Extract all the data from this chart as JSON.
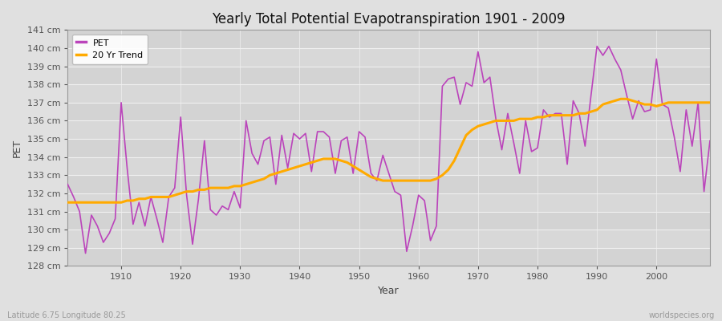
{
  "title": "Yearly Total Potential Evapotranspiration 1901 - 2009",
  "xlabel": "Year",
  "ylabel": "PET",
  "subtitle": "Latitude 6.75 Longitude 80.25",
  "watermark": "worldspecies.org",
  "pet_color": "#bb44bb",
  "trend_color": "#ffaa00",
  "background_color": "#e0e0e0",
  "plot_bg_color": "#d8d8d8",
  "grid_color": "#f0f0f0",
  "ylim": [
    128,
    141
  ],
  "xlim": [
    1901,
    2009
  ],
  "yticks": [
    128,
    129,
    130,
    131,
    132,
    133,
    134,
    135,
    136,
    137,
    138,
    139,
    140,
    141
  ],
  "xticks": [
    1910,
    1920,
    1930,
    1940,
    1950,
    1960,
    1970,
    1980,
    1990,
    2000
  ],
  "years": [
    1901,
    1902,
    1903,
    1904,
    1905,
    1906,
    1907,
    1908,
    1909,
    1910,
    1911,
    1912,
    1913,
    1914,
    1915,
    1916,
    1917,
    1918,
    1919,
    1920,
    1921,
    1922,
    1923,
    1924,
    1925,
    1926,
    1927,
    1928,
    1929,
    1930,
    1931,
    1932,
    1933,
    1934,
    1935,
    1936,
    1937,
    1938,
    1939,
    1940,
    1941,
    1942,
    1943,
    1944,
    1945,
    1946,
    1947,
    1948,
    1949,
    1950,
    1951,
    1952,
    1953,
    1954,
    1955,
    1956,
    1957,
    1958,
    1959,
    1960,
    1961,
    1962,
    1963,
    1964,
    1965,
    1966,
    1967,
    1968,
    1969,
    1970,
    1971,
    1972,
    1973,
    1974,
    1975,
    1976,
    1977,
    1978,
    1979,
    1980,
    1981,
    1982,
    1983,
    1984,
    1985,
    1986,
    1987,
    1988,
    1989,
    1990,
    1991,
    1992,
    1993,
    1994,
    1995,
    1996,
    1997,
    1998,
    1999,
    2000,
    2001,
    2002,
    2003,
    2004,
    2005,
    2006,
    2007,
    2008,
    2009
  ],
  "pet_values": [
    132.5,
    131.8,
    131.0,
    128.7,
    130.8,
    130.2,
    129.3,
    129.8,
    130.6,
    137.0,
    133.4,
    130.3,
    131.5,
    130.2,
    131.8,
    130.6,
    129.3,
    131.8,
    132.3,
    136.2,
    131.9,
    129.2,
    131.7,
    134.9,
    131.1,
    130.8,
    131.3,
    131.1,
    132.1,
    131.2,
    136.0,
    134.2,
    133.6,
    134.9,
    135.1,
    132.5,
    135.2,
    133.4,
    135.3,
    135.0,
    135.3,
    133.2,
    135.4,
    135.4,
    135.1,
    133.1,
    134.9,
    135.1,
    133.1,
    135.4,
    135.1,
    133.1,
    132.7,
    134.1,
    133.1,
    132.1,
    131.9,
    128.8,
    130.2,
    131.9,
    131.6,
    129.4,
    130.2,
    137.9,
    138.3,
    138.4,
    136.9,
    138.1,
    137.9,
    139.8,
    138.1,
    138.4,
    136.1,
    134.4,
    136.4,
    134.8,
    133.1,
    136.0,
    134.3,
    134.5,
    136.6,
    136.2,
    136.4,
    136.4,
    133.6,
    137.1,
    136.4,
    134.6,
    137.4,
    140.1,
    139.6,
    140.1,
    139.4,
    138.8,
    137.4,
    136.1,
    137.1,
    136.5,
    136.6,
    139.4,
    136.9,
    136.7,
    135.1,
    133.2,
    136.6,
    134.6,
    137.0,
    132.1,
    134.9
  ],
  "trend_values": [
    131.5,
    131.5,
    131.5,
    131.5,
    131.5,
    131.5,
    131.5,
    131.5,
    131.5,
    131.5,
    131.6,
    131.6,
    131.7,
    131.7,
    131.8,
    131.8,
    131.8,
    131.8,
    131.9,
    132.0,
    132.1,
    132.1,
    132.2,
    132.2,
    132.3,
    132.3,
    132.3,
    132.3,
    132.4,
    132.4,
    132.5,
    132.6,
    132.7,
    132.8,
    133.0,
    133.1,
    133.2,
    133.3,
    133.4,
    133.5,
    133.6,
    133.7,
    133.8,
    133.9,
    133.9,
    133.9,
    133.8,
    133.7,
    133.5,
    133.3,
    133.1,
    132.9,
    132.8,
    132.7,
    132.7,
    132.7,
    132.7,
    132.7,
    132.7,
    132.7,
    132.7,
    132.7,
    132.8,
    133.0,
    133.3,
    133.8,
    134.5,
    135.2,
    135.5,
    135.7,
    135.8,
    135.9,
    136.0,
    136.0,
    136.0,
    136.0,
    136.1,
    136.1,
    136.1,
    136.2,
    136.2,
    136.3,
    136.3,
    136.3,
    136.3,
    136.3,
    136.4,
    136.4,
    136.5,
    136.6,
    136.9,
    137.0,
    137.1,
    137.2,
    137.2,
    137.1,
    137.0,
    136.9,
    136.9,
    136.8,
    136.9,
    137.0,
    137.0,
    137.0,
    137.0,
    137.0,
    137.0,
    137.0,
    137.0
  ]
}
